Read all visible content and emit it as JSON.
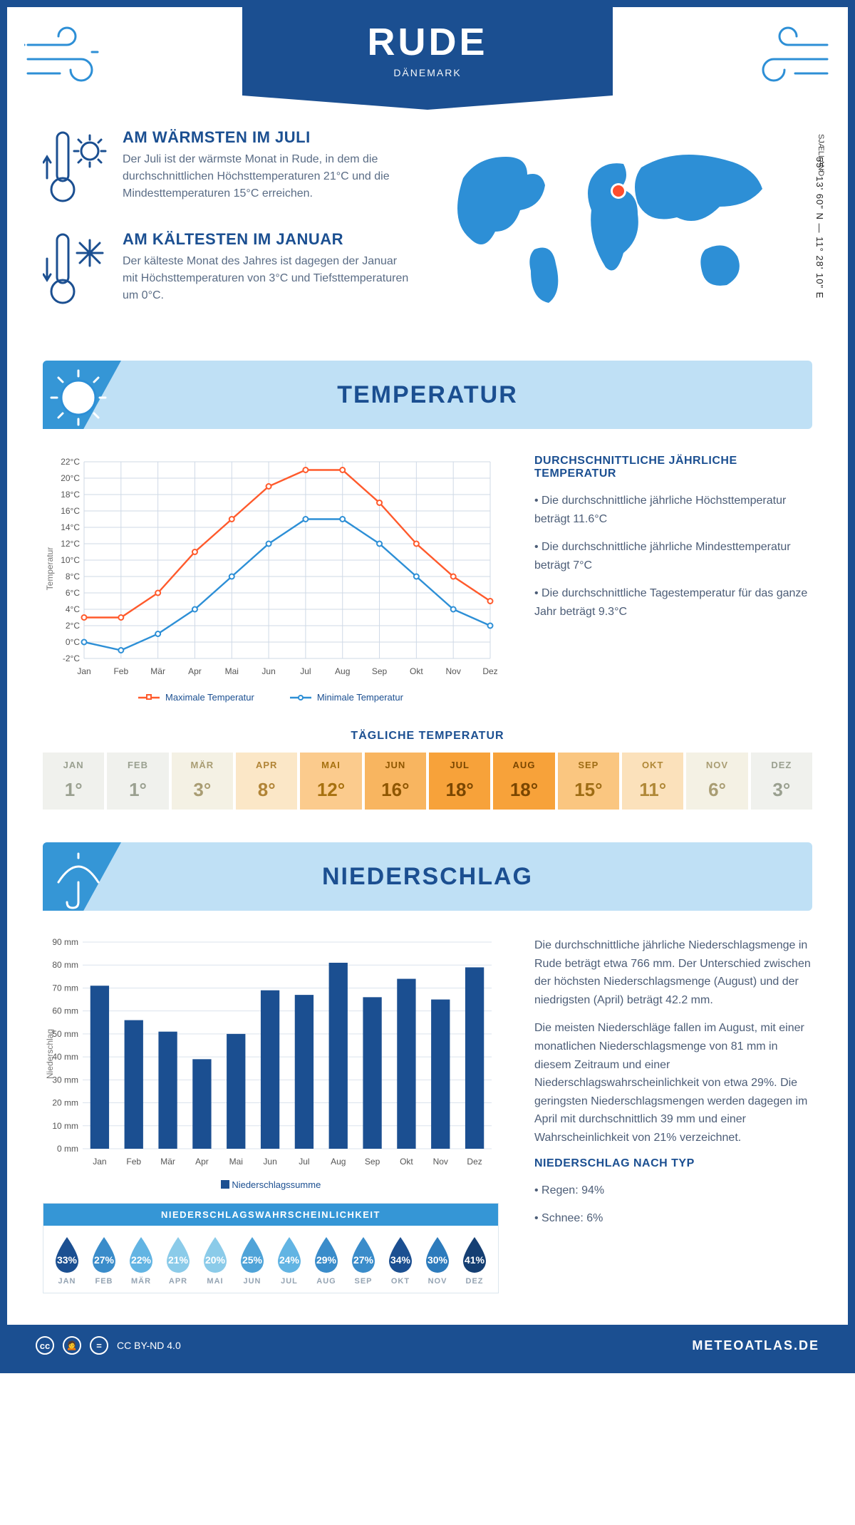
{
  "header": {
    "city": "RUDE",
    "country": "DÄNEMARK"
  },
  "location": {
    "coords": "55° 13' 60\" N — 11° 28' 10\" E",
    "region": "SJÆLLAND",
    "marker_color": "#ff4d2e"
  },
  "facts": {
    "warm": {
      "title": "AM WÄRMSTEN IM JULI",
      "text": "Der Juli ist der wärmste Monat in Rude, in dem die durchschnittlichen Höchsttemperaturen 21°C und die Mindesttemperaturen 15°C erreichen."
    },
    "cold": {
      "title": "AM KÄLTESTEN IM JANUAR",
      "text": "Der kälteste Monat des Jahres ist dagegen der Januar mit Höchsttemperaturen von 3°C und Tiefsttemperaturen um 0°C."
    }
  },
  "sections": {
    "temperature": "TEMPERATUR",
    "precip": "NIEDERSCHLAG"
  },
  "temp_chart": {
    "type": "line",
    "months": [
      "Jan",
      "Feb",
      "Mär",
      "Apr",
      "Mai",
      "Jun",
      "Jul",
      "Aug",
      "Sep",
      "Okt",
      "Nov",
      "Dez"
    ],
    "max": [
      3,
      3,
      6,
      11,
      15,
      19,
      21,
      21,
      17,
      12,
      8,
      5
    ],
    "min": [
      0,
      -1,
      1,
      4,
      8,
      12,
      15,
      15,
      12,
      8,
      4,
      2
    ],
    "max_color": "#ff5a2c",
    "min_color": "#2d8fd6",
    "ymin": -2,
    "ymax": 22,
    "ystep": 2,
    "grid_color": "#cfd9e6",
    "marker": "circle",
    "line_width": 2.4,
    "y_axis_label": "Temperatur",
    "legend_max": "Maximale Temperatur",
    "legend_min": "Minimale Temperatur"
  },
  "temp_side": {
    "heading": "DURCHSCHNITTLICHE JÄHRLICHE TEMPERATUR",
    "b1": "• Die durchschnittliche jährliche Höchsttemperatur beträgt 11.6°C",
    "b2": "• Die durchschnittliche jährliche Mindesttemperatur beträgt 7°C",
    "b3": "• Die durchschnittliche Tagestemperatur für das ganze Jahr beträgt 9.3°C"
  },
  "daily": {
    "title": "TÄGLICHE TEMPERATUR",
    "months": [
      "JAN",
      "FEB",
      "MÄR",
      "APR",
      "MAI",
      "JUN",
      "JUL",
      "AUG",
      "SEP",
      "OKT",
      "NOV",
      "DEZ"
    ],
    "values": [
      "1°",
      "1°",
      "3°",
      "8°",
      "12°",
      "16°",
      "18°",
      "18°",
      "15°",
      "11°",
      "6°",
      "3°"
    ],
    "bg": [
      "#f0f1ed",
      "#f0f1ed",
      "#f4f1e4",
      "#fbe7c7",
      "#fbcb8d",
      "#f8b560",
      "#f7a23a",
      "#f7a23a",
      "#fac680",
      "#fbe1bb",
      "#f4f1e4",
      "#f0f1ed"
    ],
    "fg": [
      "#9aa090",
      "#9aa090",
      "#a99d73",
      "#b18436",
      "#a7710f",
      "#8f5600",
      "#7a4600",
      "#7a4600",
      "#9e6c14",
      "#b08837",
      "#a99d73",
      "#9aa090"
    ]
  },
  "precip_chart": {
    "type": "bar",
    "months": [
      "Jan",
      "Feb",
      "Mär",
      "Apr",
      "Mai",
      "Jun",
      "Jul",
      "Aug",
      "Sep",
      "Okt",
      "Nov",
      "Dez"
    ],
    "values": [
      71,
      56,
      51,
      39,
      50,
      69,
      67,
      81,
      66,
      74,
      65,
      79
    ],
    "bar_color": "#1b4f91",
    "ymin": 0,
    "ymax": 90,
    "ystep": 10,
    "y_axis_label": "Niederschlag",
    "grid_color": "#dbe3ed",
    "bar_width": 0.55,
    "legend": "Niederschlagssumme"
  },
  "precip_text": {
    "p1": "Die durchschnittliche jährliche Niederschlagsmenge in Rude beträgt etwa 766 mm. Der Unterschied zwischen der höchsten Niederschlagsmenge (August) und der niedrigsten (April) beträgt 42.2 mm.",
    "p2": "Die meisten Niederschläge fallen im August, mit einer monatlichen Niederschlagsmenge von 81 mm in diesem Zeitraum und einer Niederschlagswahrscheinlichkeit von etwa 29%. Die geringsten Niederschlagsmengen werden dagegen im April mit durchschnittlich 39 mm und einer Wahrscheinlichkeit von 21% verzeichnet.",
    "type_h": "NIEDERSCHLAG NACH TYP",
    "type_1": "• Regen: 94%",
    "type_2": "• Schnee: 6%"
  },
  "prob": {
    "title": "NIEDERSCHLAGSWAHRSCHEINLICHKEIT",
    "months": [
      "JAN",
      "FEB",
      "MÄR",
      "APR",
      "MAI",
      "JUN",
      "JUL",
      "AUG",
      "SEP",
      "OKT",
      "NOV",
      "DEZ"
    ],
    "pct": [
      "33%",
      "27%",
      "22%",
      "21%",
      "20%",
      "25%",
      "24%",
      "29%",
      "27%",
      "34%",
      "30%",
      "41%"
    ],
    "colors": [
      "#1b4f91",
      "#3a8cca",
      "#62b4e3",
      "#8bcbe9",
      "#8bcbe9",
      "#4fa3d8",
      "#62b4e3",
      "#3a8cca",
      "#3a8cca",
      "#1b4f91",
      "#2d7bbc",
      "#153f73"
    ]
  },
  "footer": {
    "license": "CC BY-ND 4.0",
    "site": "METEOATLAS.DE"
  },
  "palette": {
    "brand": "#1b4f91",
    "accent": "#3596d6",
    "banner_bg": "#bfe0f5"
  }
}
